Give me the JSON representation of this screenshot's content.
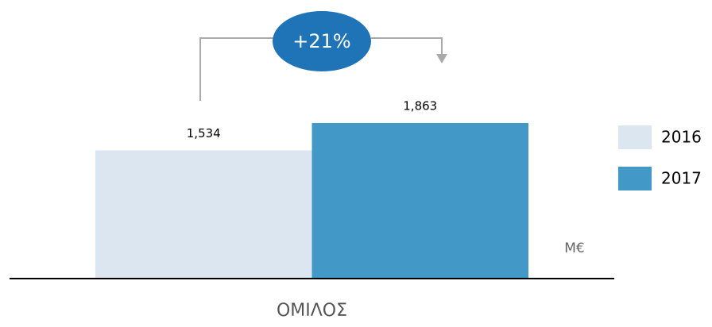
{
  "chart_data": {
    "type": "bar",
    "categories": [
      "ΟΜΙΛΟΣ"
    ],
    "series": [
      {
        "name": "2016",
        "color": "#dce6f0",
        "values": [
          1534
        ],
        "value_labels": [
          "1,534"
        ]
      },
      {
        "name": "2017",
        "color": "#4299c8",
        "values": [
          1863
        ],
        "value_labels": [
          "1,863"
        ]
      }
    ],
    "annotation": "+21%",
    "unit_label": "M€",
    "legend": "right"
  }
}
